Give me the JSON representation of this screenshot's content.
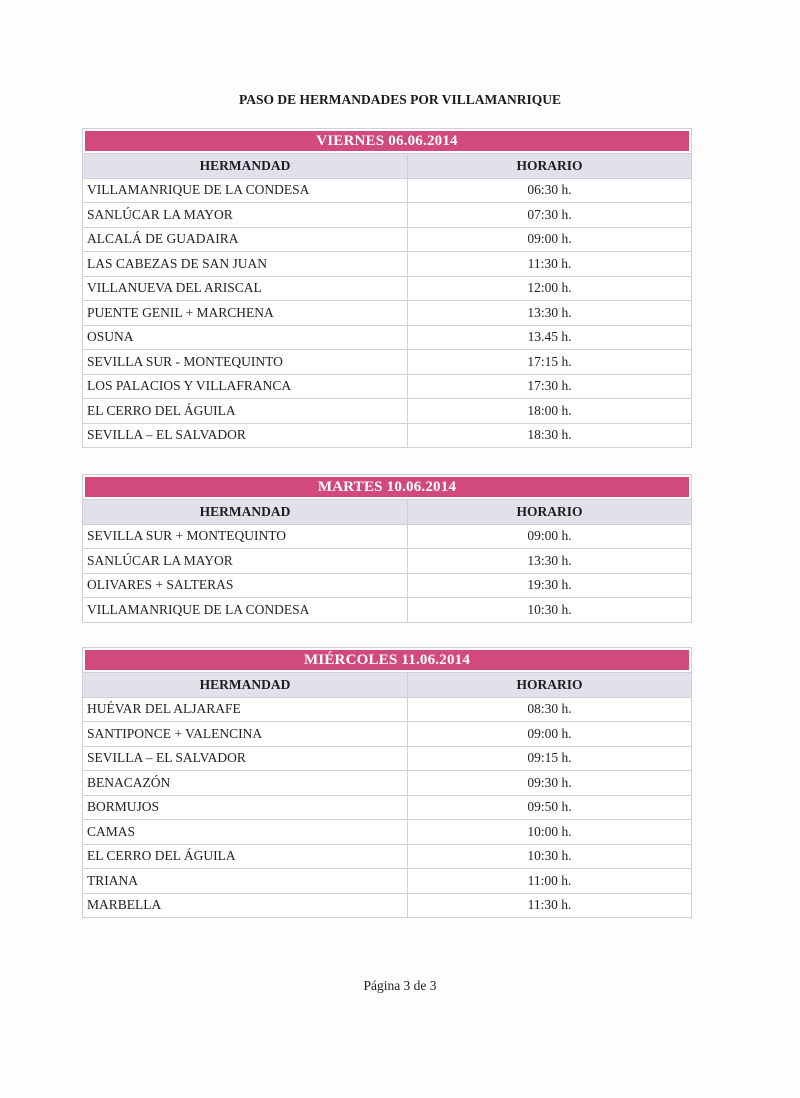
{
  "title": "PASO DE HERMANDADES POR VILLAMANRIQUE",
  "columns": {
    "hermandad": "HERMANDAD",
    "horario": "HORARIO"
  },
  "accent_color": "#d24a7b",
  "days": [
    {
      "label": "VIERNES  06.06.2014",
      "rows": [
        [
          "VILLAMANRIQUE DE LA CONDESA",
          "06:30 h."
        ],
        [
          "SANLÚCAR LA MAYOR",
          "07:30 h."
        ],
        [
          "ALCALÁ DE GUADAIRA",
          "09:00 h."
        ],
        [
          "LAS CABEZAS DE SAN JUAN",
          "11:30 h."
        ],
        [
          "VILLANUEVA DEL ARISCAL",
          "12:00 h."
        ],
        [
          "PUENTE GENIL + MARCHENA",
          "13:30 h."
        ],
        [
          "OSUNA",
          "13.45 h."
        ],
        [
          "SEVILLA SUR - MONTEQUINTO",
          "17:15 h."
        ],
        [
          "LOS PALACIOS Y VILLAFRANCA",
          "17:30 h."
        ],
        [
          "EL CERRO DEL ÁGUILA",
          "18:00 h."
        ],
        [
          "SEVILLA – EL SALVADOR",
          "18:30 h."
        ]
      ]
    },
    {
      "label": "MARTES  10.06.2014",
      "rows": [
        [
          "SEVILLA SUR + MONTEQUINTO",
          "09:00 h."
        ],
        [
          "SANLÚCAR LA MAYOR",
          "13:30 h."
        ],
        [
          "OLIVARES + SALTERAS",
          "19:30 h."
        ],
        [
          "VILLAMANRIQUE DE LA CONDESA",
          "10:30 h."
        ]
      ]
    },
    {
      "label": "MIÉRCOLES  11.06.2014",
      "rows": [
        [
          "HUÉVAR DEL ALJARAFE",
          "08:30 h."
        ],
        [
          "SANTIPONCE + VALENCINA",
          "09:00 h."
        ],
        [
          "SEVILLA – EL SALVADOR",
          "09:15 h."
        ],
        [
          "BENACAZÓN",
          "09:30 h."
        ],
        [
          "BORMUJOS",
          "09:50 h."
        ],
        [
          "CAMAS",
          "10:00 h."
        ],
        [
          "EL CERRO DEL ÁGUILA",
          "10:30 h."
        ],
        [
          "TRIANA",
          "11:00 h."
        ],
        [
          "MARBELLA",
          "11:30 h."
        ]
      ]
    }
  ],
  "footer": "Página 3 de 3"
}
